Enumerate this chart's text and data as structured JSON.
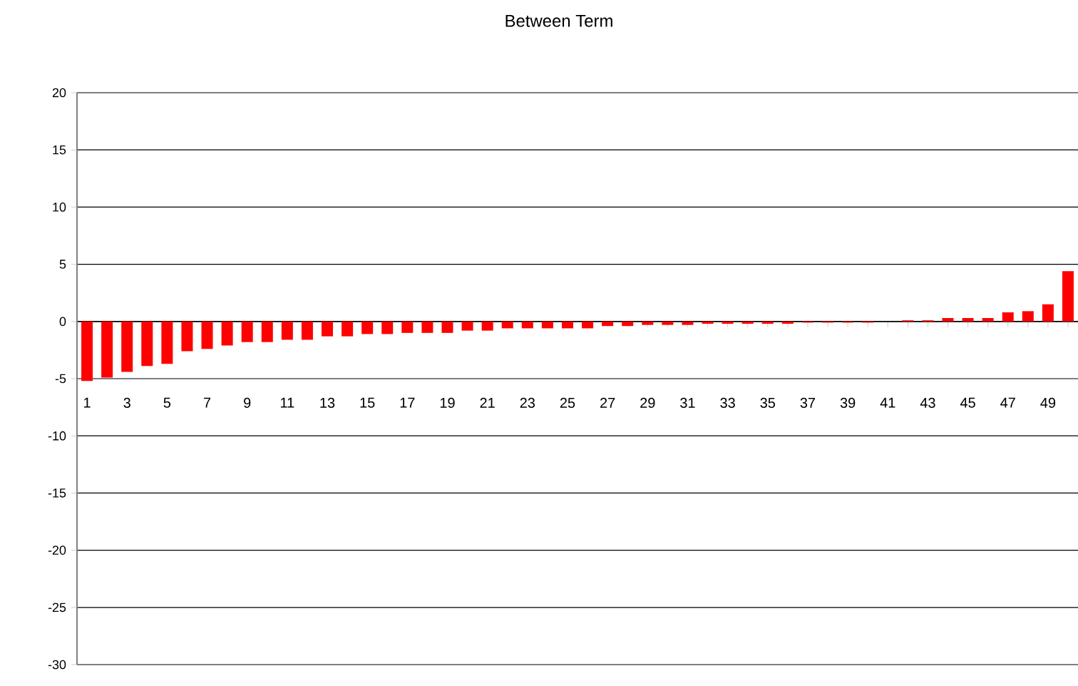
{
  "chart_data": {
    "type": "bar",
    "title": "Between Term",
    "categories": [
      "1",
      null,
      "3",
      null,
      "5",
      null,
      "7",
      null,
      "9",
      null,
      "11",
      null,
      "13",
      null,
      "15",
      null,
      "17",
      null,
      "19",
      null,
      "21",
      null,
      "23",
      null,
      "25",
      null,
      "27",
      null,
      "29",
      null,
      "31",
      null,
      "33",
      null,
      "35",
      null,
      "37",
      null,
      "39",
      null,
      "41",
      null,
      "43",
      null,
      "45",
      null,
      "47",
      null,
      "49",
      null
    ],
    "values": [
      -5.2,
      -4.9,
      -4.4,
      -3.9,
      -3.7,
      -2.6,
      -2.4,
      -2.1,
      -1.8,
      -1.8,
      -1.6,
      -1.6,
      -1.3,
      -1.3,
      -1.1,
      -1.1,
      -1.0,
      -1.0,
      -1.0,
      -0.8,
      -0.8,
      -0.6,
      -0.6,
      -0.6,
      -0.6,
      -0.6,
      -0.4,
      -0.4,
      -0.3,
      -0.3,
      -0.3,
      -0.2,
      -0.2,
      -0.2,
      -0.2,
      -0.2,
      -0.1,
      -0.1,
      -0.1,
      -0.1,
      0,
      0.1,
      0.1,
      0.3,
      0.3,
      0.3,
      0.8,
      0.9,
      1.5,
      4.4
    ],
    "color": "#ff0000",
    "ylim": [
      -30,
      20
    ],
    "yticks": [
      -30,
      -25,
      -20,
      -15,
      -10,
      -5,
      0,
      5,
      10,
      15,
      20
    ],
    "grid": "y"
  }
}
